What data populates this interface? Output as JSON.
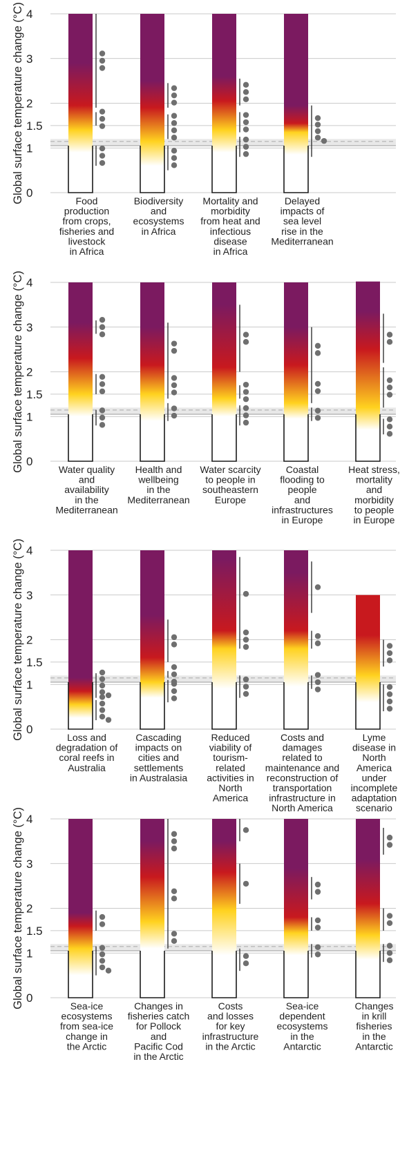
{
  "colors": {
    "undetectable": "#ffffff",
    "moderate": "#ffd21f",
    "high": "#c8191e",
    "very_high": "#7b1a60",
    "dot": "#6f6f6f",
    "historical_band": "#d6d6d6"
  },
  "chart_data": [
    {
      "type": "bar",
      "panel": 1,
      "ylabel": "Global surface temperature change (°C)",
      "ylim": [
        0,
        4
      ],
      "yticks": [
        "0",
        "1",
        "1.5",
        "2",
        "3",
        "4"
      ],
      "historical_warming": [
        1.05,
        1.2
      ],
      "categories": [
        {
          "label": [
            "Food",
            "production",
            "from crops,",
            "fisheries and",
            "livestock",
            "in Africa"
          ],
          "top": 4,
          "stops": [
            [
              0.9,
              "w"
            ],
            [
              1.4,
              "y"
            ],
            [
              1.95,
              "r"
            ],
            [
              2.9,
              "p"
            ]
          ],
          "lines": [
            [
              0.6,
              1.05
            ],
            [
              1.5,
              1.8
            ],
            [
              1.9,
              4
            ]
          ],
          "dots": [
            3,
            3,
            3
          ]
        },
        {
          "label": [
            "Biodiversity",
            "and",
            "ecosystems",
            "in Africa"
          ],
          "top": 4,
          "stops": [
            [
              0.6,
              "w"
            ],
            [
              1.15,
              "y"
            ],
            [
              1.9,
              "r"
            ],
            [
              2.5,
              "p"
            ]
          ],
          "lines": [
            [
              0.5,
              1.05
            ],
            [
              1.2,
              1.75
            ],
            [
              1.9,
              2.45
            ]
          ],
          "dots": [
            3,
            4,
            3
          ]
        },
        {
          "label": [
            "Mortality and",
            "morbidity",
            "from heat and",
            "infectious",
            "disease",
            "in Africa"
          ],
          "top": 4,
          "stops": [
            [
              0.9,
              "w"
            ],
            [
              1.4,
              "y"
            ],
            [
              2.05,
              "r"
            ],
            [
              2.6,
              "p"
            ]
          ],
          "lines": [
            [
              0.8,
              1.25
            ],
            [
              1.35,
              1.8
            ],
            [
              1.95,
              2.55
            ]
          ],
          "dots": [
            3,
            3,
            3
          ]
        },
        {
          "label": [
            "Delayed",
            "impacts of",
            "sea level",
            "rise in the",
            "Mediterranean"
          ],
          "top": 4,
          "stops": [
            [
              0.85,
              "w"
            ],
            [
              1.35,
              "y"
            ],
            [
              1.55,
              "r"
            ],
            [
              1.95,
              "p"
            ]
          ],
          "lines": [
            [
              0.8,
              1.95
            ]
          ],
          "dots": [
            5
          ]
        }
      ]
    },
    {
      "type": "bar",
      "panel": 2,
      "ylabel": "Global surface temperature change (°C)",
      "ylim": [
        0,
        4
      ],
      "yticks": [
        "0",
        "1",
        "1.5",
        "2",
        "3",
        "4"
      ],
      "historical_warming": [
        1.05,
        1.2
      ],
      "categories": [
        {
          "label": [
            "Water quality",
            "and",
            "availability",
            "in the",
            "Mediterranean"
          ],
          "top": 4,
          "stops": [
            [
              1.0,
              "w"
            ],
            [
              1.5,
              "y"
            ],
            [
              2.3,
              "r"
            ],
            [
              3.1,
              "p"
            ]
          ],
          "lines": [
            [
              0.8,
              1.15
            ],
            [
              1.5,
              1.95
            ],
            [
              2.85,
              3.15
            ]
          ],
          "dots": [
            3,
            3,
            3
          ]
        },
        {
          "label": [
            "Health and",
            "wellbeing",
            "in the",
            "Mediterranean"
          ],
          "top": 4,
          "stops": [
            [
              0.9,
              "w"
            ],
            [
              1.5,
              "y"
            ],
            [
              2.15,
              "r"
            ],
            [
              3.0,
              "p"
            ]
          ],
          "lines": [
            [
              0.9,
              1.3
            ],
            [
              1.4,
              2.0
            ],
            [
              2.0,
              3.1
            ]
          ],
          "dots": [
            2,
            3,
            2
          ]
        },
        {
          "label": [
            "Water scarcity",
            "to people in",
            "southeastern",
            "Europe"
          ],
          "top": 4,
          "stops": [
            [
              1.0,
              "w"
            ],
            [
              1.4,
              "y"
            ],
            [
              2.1,
              "r"
            ],
            [
              3.5,
              "p"
            ]
          ],
          "lines": [
            [
              0.8,
              1.25
            ],
            [
              1.4,
              1.7
            ],
            [
              2.0,
              3.5
            ]
          ],
          "dots": [
            3,
            3,
            2
          ]
        },
        {
          "label": [
            "Coastal",
            "flooding to",
            "people",
            "and",
            "infrastructures",
            "in Europe"
          ],
          "top": 4,
          "stops": [
            [
              0.95,
              "w"
            ],
            [
              1.3,
              "y"
            ],
            [
              2.15,
              "r"
            ],
            [
              3.0,
              "p"
            ]
          ],
          "lines": [
            [
              0.9,
              1.2
            ],
            [
              1.3,
              2.0
            ],
            [
              2.0,
              3.0
            ]
          ],
          "dots": [
            2,
            2,
            2
          ]
        },
        {
          "label": [
            "Heat stress,",
            "mortality",
            "and",
            "morbidity",
            "to people",
            "in Europe"
          ],
          "top": 4.02,
          "stops": [
            [
              0.7,
              "w"
            ],
            [
              1.2,
              "y"
            ],
            [
              2.5,
              "r"
            ],
            [
              3.35,
              "p"
            ]
          ],
          "lines": [
            [
              0.6,
              0.95
            ],
            [
              1.2,
              2.1
            ],
            [
              2.2,
              3.3
            ]
          ],
          "dots": [
            3,
            3,
            2
          ]
        }
      ]
    },
    {
      "type": "bar",
      "panel": 3,
      "ylabel": "Global surface temperature change (°C)",
      "ylim": [
        0,
        4
      ],
      "yticks": [
        "0",
        "1",
        "1.5",
        "2",
        "3",
        "4"
      ],
      "historical_warming": [
        1.05,
        1.2
      ],
      "categories": [
        {
          "label": [
            "Loss and",
            "degradation of",
            "coral reefs in",
            "Australia"
          ],
          "top": 4,
          "stops": [
            [
              0.25,
              "w"
            ],
            [
              0.55,
              "y"
            ],
            [
              0.85,
              "r"
            ],
            [
              1.15,
              "p"
            ]
          ],
          "lines": [
            [
              0.2,
              0.65
            ],
            [
              0.7,
              1.25
            ]
          ],
          "dots": [
            5,
            5
          ]
        },
        {
          "label": [
            "Cascading",
            "impacts on",
            "cities and",
            "settlements",
            "in Australasia"
          ],
          "top": 4,
          "stops": [
            [
              0.7,
              "w"
            ],
            [
              1.05,
              "y"
            ],
            [
              1.6,
              "r"
            ],
            [
              2.55,
              "p"
            ]
          ],
          "lines": [
            [
              0.6,
              1.1
            ],
            [
              1.15,
              1.3
            ],
            [
              1.5,
              2.45
            ]
          ],
          "dots": [
            3,
            3,
            2
          ]
        },
        {
          "label": [
            "Reduced",
            "viability of",
            "tourism-",
            "related",
            "activities in",
            "North",
            "America"
          ],
          "top": 4,
          "stops": [
            [
              0.9,
              "w"
            ],
            [
              1.8,
              "y"
            ],
            [
              2.2,
              "r"
            ],
            [
              3.8,
              "p"
            ]
          ],
          "lines": [
            [
              0.7,
              1.2
            ],
            [
              1.8,
              2.2
            ],
            [
              2.2,
              3.85
            ]
          ],
          "dots": [
            3,
            3,
            1
          ]
        },
        {
          "label": [
            "Costs and",
            "damages",
            "related to",
            "maintenance and",
            "reconstruction of",
            "transportation",
            "infrastructure in",
            "North America"
          ],
          "top": 4,
          "stops": [
            [
              0.95,
              "w"
            ],
            [
              1.8,
              "y"
            ],
            [
              2.2,
              "r"
            ],
            [
              3.5,
              "p"
            ]
          ],
          "lines": [
            [
              0.9,
              1.2
            ],
            [
              1.8,
              2.2
            ],
            [
              2.6,
              3.75
            ]
          ],
          "dots": [
            3,
            2,
            1
          ]
        },
        {
          "label": [
            "Lyme",
            "disease in",
            "North",
            "America",
            "under",
            "incomplete",
            "adaptation",
            "scenario"
          ],
          "top": 3,
          "stops": [
            [
              0.6,
              "w"
            ],
            [
              1.2,
              "y"
            ],
            [
              2.1,
              "r"
            ]
          ],
          "lines": [
            [
              0.4,
              1.0
            ],
            [
              1.4,
              2.0
            ]
          ],
          "dots": [
            4,
            3
          ]
        }
      ]
    },
    {
      "type": "bar",
      "panel": 4,
      "ylabel": "Global surface temperature change (°C)",
      "ylim": [
        0,
        4
      ],
      "yticks": [
        "0",
        "1",
        "1.5",
        "2",
        "3",
        "4"
      ],
      "historical_warming": [
        1.05,
        1.2
      ],
      "categories": [
        {
          "label": [
            "Sea-ice",
            "ecosystems",
            "from sea-ice",
            "change in",
            "the Arctic"
          ],
          "top": 4,
          "stops": [
            [
              0.5,
              "w"
            ],
            [
              1.1,
              "y"
            ],
            [
              1.6,
              "r"
            ],
            [
              1.9,
              "p"
            ]
          ],
          "lines": [
            [
              0.5,
              1.15
            ],
            [
              1.5,
              1.95
            ]
          ],
          "dots": [
            5,
            2
          ]
        },
        {
          "label": [
            "Changes in",
            "fisheries catch",
            "for Pollock",
            "and",
            "Pacific Cod",
            "in the Arctic"
          ],
          "top": 4,
          "stops": [
            [
              1.1,
              "w"
            ],
            [
              1.7,
              "y"
            ],
            [
              2.7,
              "r"
            ],
            [
              3.5,
              "p"
            ]
          ],
          "lines": [
            [
              1.1,
              1.6
            ],
            [
              1.6,
              3.0
            ],
            [
              3.0,
              4
            ]
          ],
          "dots": [
            2,
            2,
            3
          ]
        },
        {
          "label": [
            "Costs",
            "and losses",
            "for key",
            "infrastructure",
            "in the Arctic"
          ],
          "top": 4,
          "stops": [
            [
              0.95,
              "w"
            ],
            [
              1.95,
              "y"
            ],
            [
              2.8,
              "r"
            ],
            [
              3.5,
              "p"
            ]
          ],
          "lines": [
            [
              0.6,
              1.1
            ],
            [
              2.1,
              3.0
            ],
            [
              3.5,
              4
            ]
          ],
          "dots": [
            2,
            1,
            1
          ]
        },
        {
          "label": [
            "Sea-ice",
            "dependent",
            "ecosystems",
            "in the",
            "Antarctic"
          ],
          "top": 4,
          "stops": [
            [
              0.95,
              "w"
            ],
            [
              1.45,
              "y"
            ],
            [
              1.8,
              "r"
            ],
            [
              2.9,
              "p"
            ]
          ],
          "lines": [
            [
              0.9,
              1.2
            ],
            [
              1.5,
              1.8
            ],
            [
              2.2,
              2.7
            ]
          ],
          "dots": [
            2,
            2,
            2
          ]
        },
        {
          "label": [
            "Changes",
            "in krill",
            "fisheries",
            "in the",
            "Antarctic"
          ],
          "top": 4,
          "stops": [
            [
              0.85,
              "w"
            ],
            [
              1.4,
              "y"
            ],
            [
              2.1,
              "r"
            ],
            [
              3.1,
              "p"
            ]
          ],
          "lines": [
            [
              0.8,
              1.2
            ],
            [
              1.5,
              2.0
            ],
            [
              3.2,
              3.8
            ]
          ],
          "dots": [
            3,
            2,
            2
          ]
        }
      ]
    }
  ]
}
